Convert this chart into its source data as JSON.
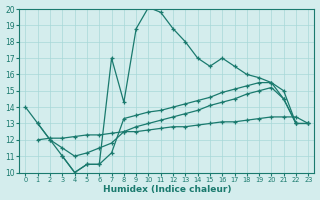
{
  "xlabel": "Humidex (Indice chaleur)",
  "bg_color": "#d4eded",
  "line_color": "#1a7a6e",
  "xlim": [
    -0.5,
    23.5
  ],
  "ylim": [
    10,
    20
  ],
  "xticks": [
    0,
    1,
    2,
    3,
    4,
    5,
    6,
    7,
    8,
    9,
    10,
    11,
    12,
    13,
    14,
    15,
    16,
    17,
    18,
    19,
    20,
    21,
    22,
    23
  ],
  "yticks": [
    10,
    11,
    12,
    13,
    14,
    15,
    16,
    17,
    18,
    19,
    20
  ],
  "curves": [
    {
      "x": [
        0,
        1,
        2,
        3,
        4,
        5,
        6,
        7,
        8,
        9,
        10,
        11,
        12,
        13,
        14,
        15,
        16,
        17,
        18,
        19,
        20,
        21,
        22
      ],
      "y": [
        14.0,
        13.0,
        12.0,
        11.0,
        10.0,
        10.5,
        10.5,
        17.0,
        14.3,
        18.8,
        20.1,
        19.8,
        18.8,
        18.0,
        17.0,
        16.5,
        17.0,
        16.5,
        16.0,
        15.8,
        15.5,
        14.5,
        13.0
      ]
    },
    {
      "x": [
        3,
        4,
        5,
        6,
        7,
        8,
        9,
        10,
        11,
        12,
        13,
        14,
        15,
        16,
        17,
        18,
        19,
        20,
        21,
        22,
        23
      ],
      "y": [
        11.0,
        10.0,
        10.5,
        10.5,
        11.2,
        13.3,
        13.5,
        13.7,
        13.8,
        14.0,
        14.2,
        14.4,
        14.6,
        14.9,
        15.1,
        15.3,
        15.5,
        15.5,
        15.0,
        13.0,
        13.0
      ]
    },
    {
      "x": [
        1,
        2,
        3,
        4,
        5,
        6,
        7,
        8,
        9,
        10,
        11,
        12,
        13,
        14,
        15,
        16,
        17,
        18,
        19,
        20,
        21,
        22,
        23
      ],
      "y": [
        13.0,
        12.0,
        11.5,
        11.0,
        11.2,
        11.5,
        11.8,
        12.5,
        12.8,
        13.0,
        13.2,
        13.4,
        13.6,
        13.8,
        14.1,
        14.3,
        14.5,
        14.8,
        15.0,
        15.2,
        14.5,
        13.0,
        13.0
      ]
    },
    {
      "x": [
        1,
        2,
        3,
        4,
        5,
        6,
        7,
        8,
        9,
        10,
        11,
        12,
        13,
        14,
        15,
        16,
        17,
        18,
        19,
        20,
        21,
        22,
        23
      ],
      "y": [
        12.0,
        12.1,
        12.1,
        12.2,
        12.3,
        12.3,
        12.4,
        12.5,
        12.5,
        12.6,
        12.7,
        12.8,
        12.8,
        12.9,
        13.0,
        13.1,
        13.1,
        13.2,
        13.3,
        13.4,
        13.4,
        13.4,
        13.0
      ]
    }
  ]
}
